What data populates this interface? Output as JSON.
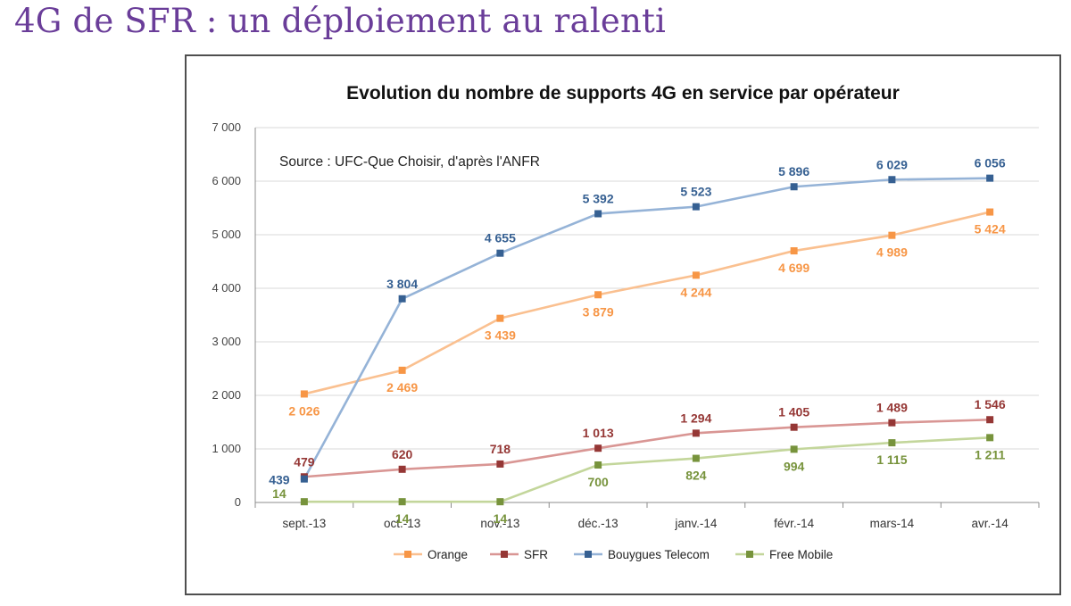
{
  "slide_title": "4G de SFR : un déploiement au ralenti",
  "chart_data": {
    "type": "line",
    "title": "Evolution du nombre de supports 4G en service par opérateur",
    "annotation": "Source : UFC-Que Choisir, d'après l'ANFR",
    "categories": [
      "sept.-13",
      "oct.-13",
      "nov.-13",
      "déc.-13",
      "janv.-14",
      "févr.-14",
      "mars-14",
      "avr.-14"
    ],
    "ylim": [
      0,
      7000
    ],
    "ytick_labels": [
      "0",
      "1 000",
      "2 000",
      "3 000",
      "4 000",
      "5 000",
      "6 000",
      "7 000"
    ],
    "grid": true,
    "legend_position": "bottom",
    "series": [
      {
        "name": "Orange",
        "key": "orange",
        "color": "#f79646",
        "line_color": "#fac090",
        "values": [
          2026,
          2469,
          3439,
          3879,
          4244,
          4699,
          4989,
          5424
        ],
        "labels": [
          "2 026",
          "2 469",
          "3 439",
          "3 879",
          "4 244",
          "4 699",
          "4 989",
          "5 424"
        ]
      },
      {
        "name": "SFR",
        "key": "sfr",
        "color": "#953735",
        "line_color": "#d99694",
        "values": [
          479,
          620,
          718,
          1013,
          1294,
          1405,
          1489,
          1546
        ],
        "labels": [
          "479",
          "620",
          "718",
          "1 013",
          "1 294",
          "1 405",
          "1 489",
          "1 546"
        ]
      },
      {
        "name": "Bouygues Telecom",
        "key": "bouygues",
        "color": "#366092",
        "line_color": "#95b3d7",
        "values": [
          439,
          3804,
          4655,
          5392,
          5523,
          5896,
          6029,
          6056
        ],
        "labels": [
          "439",
          "3 804",
          "4 655",
          "5 392",
          "5 523",
          "5 896",
          "6 029",
          "6 056"
        ]
      },
      {
        "name": "Free Mobile",
        "key": "free",
        "color": "#77933c",
        "line_color": "#c3d69b",
        "values": [
          14,
          14,
          14,
          700,
          824,
          994,
          1115,
          1211
        ],
        "labels": [
          "14",
          "14",
          "14",
          "700",
          "824",
          "994",
          "1 115",
          "1 211"
        ]
      }
    ]
  }
}
